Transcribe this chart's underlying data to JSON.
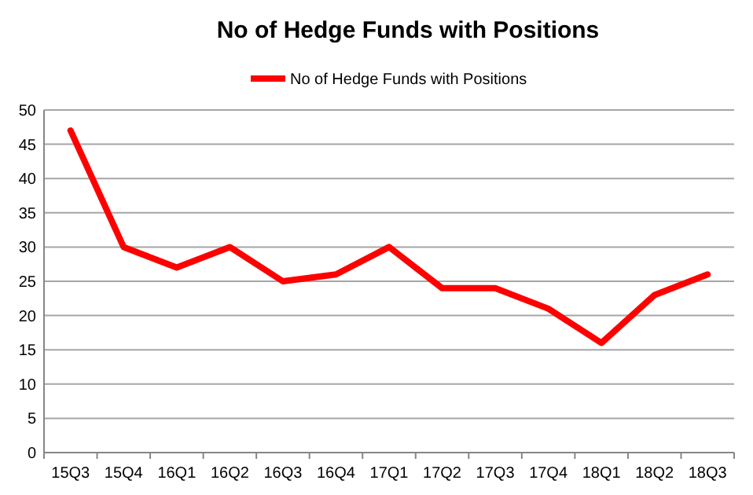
{
  "chart_data": {
    "type": "line",
    "title": "No of Hedge Funds with Positions",
    "categories": [
      "15Q3",
      "15Q4",
      "16Q1",
      "16Q2",
      "16Q3",
      "16Q4",
      "17Q1",
      "17Q2",
      "17Q3",
      "17Q4",
      "18Q1",
      "18Q2",
      "18Q3"
    ],
    "series": [
      {
        "name": "No of Hedge Funds with Positions",
        "color": "#ff0000",
        "values": [
          47,
          30,
          27,
          30,
          25,
          26,
          30,
          24,
          24,
          21,
          16,
          23,
          26
        ]
      }
    ],
    "ylim": [
      0,
      50
    ],
    "yticks": [
      0,
      5,
      10,
      15,
      20,
      25,
      30,
      35,
      40,
      45,
      50
    ],
    "grid": "y",
    "legend": "top",
    "marker": "none",
    "line_style": "solid"
  }
}
